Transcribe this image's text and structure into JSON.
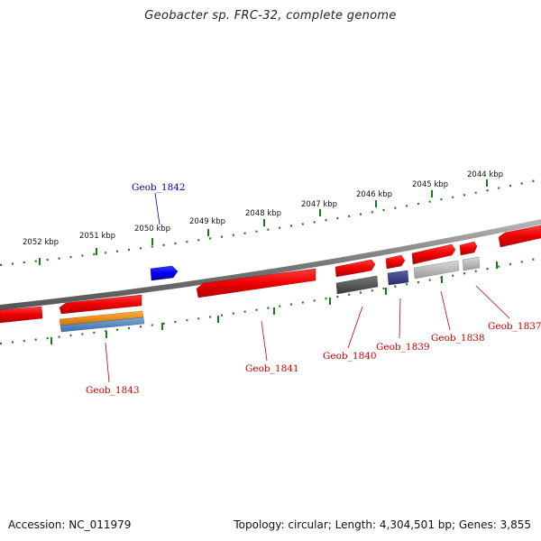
{
  "title": "Geobacter sp. FRC-32, complete genome",
  "footer": {
    "accession": "Accession: NC_011979",
    "stats": "Topology: circular; Length: 4,304,501 bp; Genes: 3,855"
  },
  "colors": {
    "forward_gene": "#ff0000",
    "selected_gene": "#0000ff",
    "backbone": "#888888",
    "tick": "#1a7a1a",
    "label_red": "#cc0000",
    "label_blue": "#0000bb",
    "feature_orange": "#f08c00",
    "feature_blue": "#4f86c6",
    "feature_darkgray": "#555555",
    "feature_navy": "#3a3a8a",
    "feature_lightgray": "#bdbdbd"
  },
  "kbp_labels": [
    "2052 kbp",
    "2051 kbp",
    "2050 kbp",
    "2049 kbp",
    "2048 kbp",
    "2047 kbp",
    "2046 kbp",
    "2045 kbp",
    "2044 kbp"
  ],
  "genes": [
    {
      "name": "Geob_1843",
      "strand": "-"
    },
    {
      "name": "Geob_1842",
      "strand": "+"
    },
    {
      "name": "Geob_1841",
      "strand": "-"
    },
    {
      "name": "Geob_1840",
      "strand": "+"
    },
    {
      "name": "Geob_1839",
      "strand": "+"
    },
    {
      "name": "Geob_1838",
      "strand": "+"
    },
    {
      "name": "Geob_1837",
      "strand": "+"
    }
  ]
}
